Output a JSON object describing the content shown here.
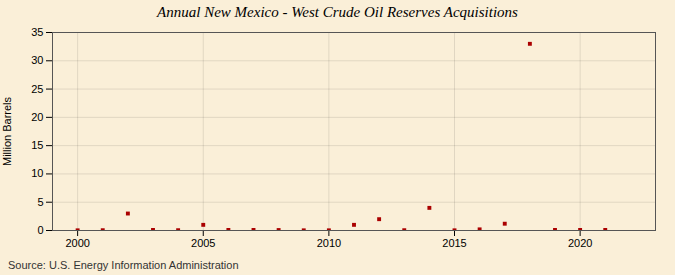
{
  "chart_data": {
    "type": "scatter",
    "title": "Annual New Mexico - West Crude Oil Reserves Acquisitions",
    "ylabel": "Million Barrels",
    "annotations": [
      "Source: U.S. Energy Information Administration"
    ],
    "x": [
      2000,
      2001,
      2002,
      2003,
      2004,
      2005,
      2006,
      2007,
      2008,
      2009,
      2010,
      2011,
      2012,
      2013,
      2014,
      2015,
      2016,
      2017,
      2018,
      2019,
      2020,
      2021
    ],
    "values": [
      0.03,
      0.05,
      3.0,
      0.1,
      0.05,
      1.0,
      0.1,
      0.1,
      0.08,
      0.03,
      0.03,
      1.0,
      2.0,
      0.05,
      4.0,
      0.03,
      0.2,
      1.2,
      33.0,
      0.1,
      0.1,
      0.1
    ],
    "color": "#aa0000",
    "marker": "square",
    "xlim": [
      1999,
      2023
    ],
    "ylim": [
      0,
      35
    ],
    "xticks": [
      2000,
      2005,
      2010,
      2015,
      2020
    ],
    "yticks": [
      0,
      5,
      10,
      15,
      20,
      25,
      30,
      35
    ],
    "grid": true
  }
}
